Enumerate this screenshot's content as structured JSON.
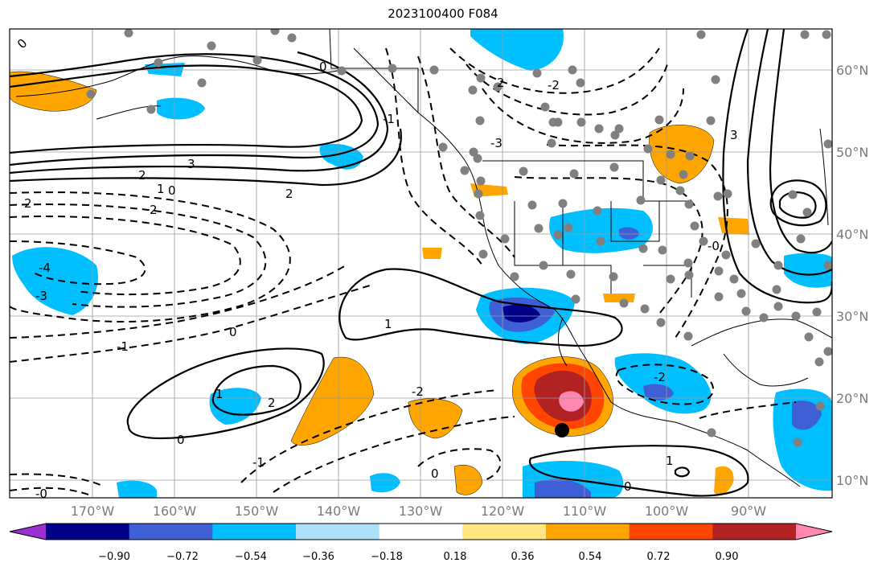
{
  "title": "2023100400 F084",
  "map": {
    "lon_labels": [
      "170°W",
      "160°W",
      "150°W",
      "140°W",
      "130°W",
      "120°W",
      "110°W",
      "100°W",
      "90°W"
    ],
    "lat_labels": [
      "60°N",
      "50°N",
      "40°N",
      "30°N",
      "20°N",
      "10°N"
    ]
  },
  "colorbar": {
    "ticks": [
      "−0.90",
      "−0.72",
      "−0.54",
      "−0.36",
      "−0.18",
      "0.18",
      "0.36",
      "0.54",
      "0.72",
      "0.90"
    ],
    "colors": [
      "#9b30d0",
      "#00008b",
      "#3e5fd6",
      "#00bfff",
      "#ade0fb",
      "#ffffff",
      "#ffe680",
      "#ffa500",
      "#ff4500",
      "#b22222",
      "#ff88b0"
    ]
  },
  "contour_labels": [
    "0",
    "2",
    "3",
    "2",
    "1",
    "0",
    "2",
    "2",
    "-4",
    "-3",
    "0",
    "-1",
    "1",
    "1",
    "2",
    "0",
    "-2",
    "-1",
    "0",
    "-2",
    "1",
    "0",
    "-1",
    "0",
    "2",
    "3",
    "-0",
    "-2",
    "-3",
    "-0"
  ],
  "fill_colors": {
    "blue": "#00bfff",
    "darkblue": "#3e5fd6",
    "navy": "#00008b",
    "orange": "#ffa500",
    "red": "#ff4500",
    "darkred": "#b22222",
    "pink": "#ff88b0"
  }
}
